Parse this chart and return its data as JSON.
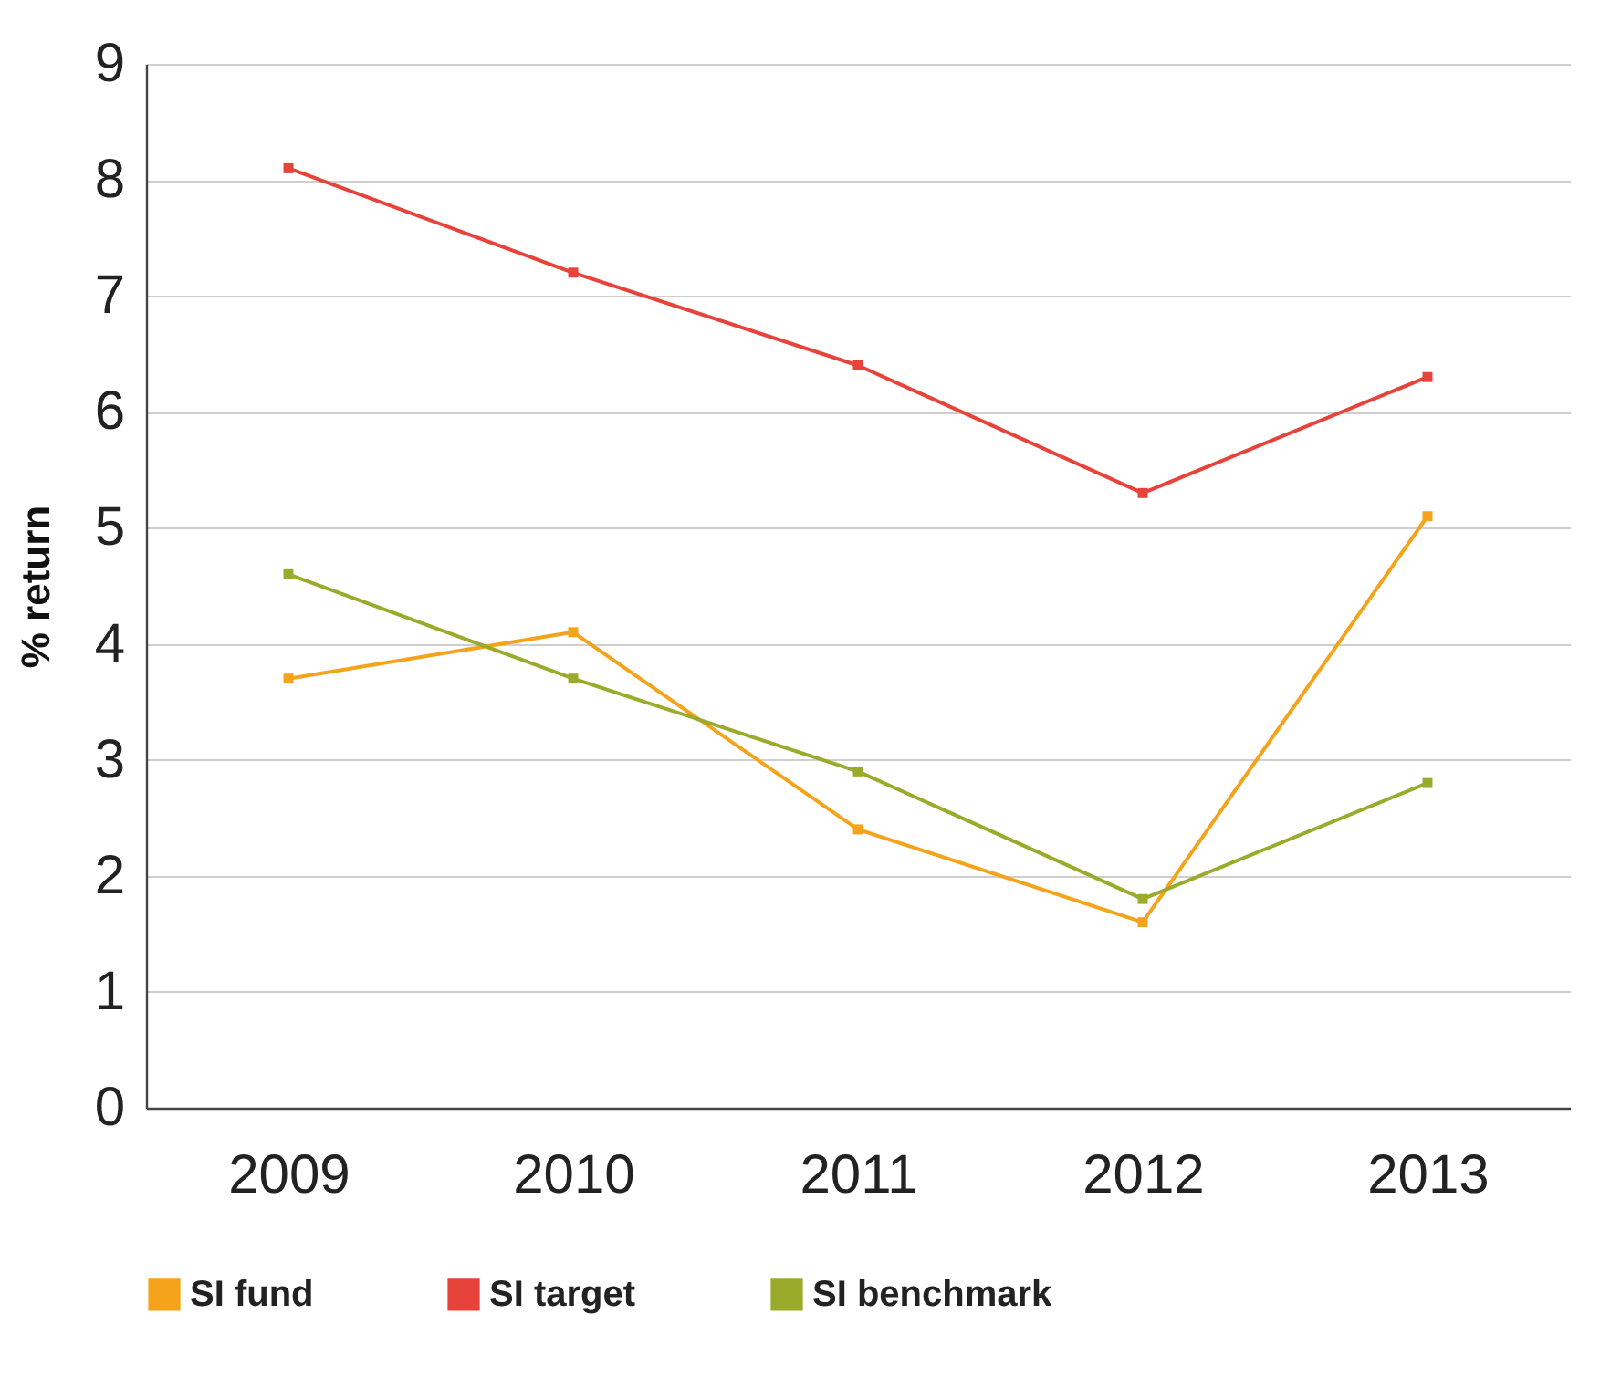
{
  "chart_data": {
    "type": "line",
    "ylabel": "% return",
    "categories": [
      "2009",
      "2010",
      "2011",
      "2012",
      "2013"
    ],
    "ylim": [
      0,
      9
    ],
    "yticks": [
      0,
      1,
      2,
      3,
      4,
      5,
      6,
      7,
      8,
      9
    ],
    "grid": "y",
    "legend": "bottom",
    "marker": "square",
    "line_style": "solid",
    "series": [
      {
        "name": "SI fund",
        "color": "#f5a31a",
        "values": [
          3.7,
          4.1,
          2.4,
          1.6,
          5.1
        ]
      },
      {
        "name": "SI target",
        "color": "#e8433a",
        "values": [
          8.1,
          7.2,
          6.4,
          5.3,
          6.3
        ]
      },
      {
        "name": "SI benchmark",
        "color": "#9aab2c",
        "values": [
          4.6,
          3.7,
          2.9,
          1.8,
          2.8
        ]
      }
    ]
  }
}
